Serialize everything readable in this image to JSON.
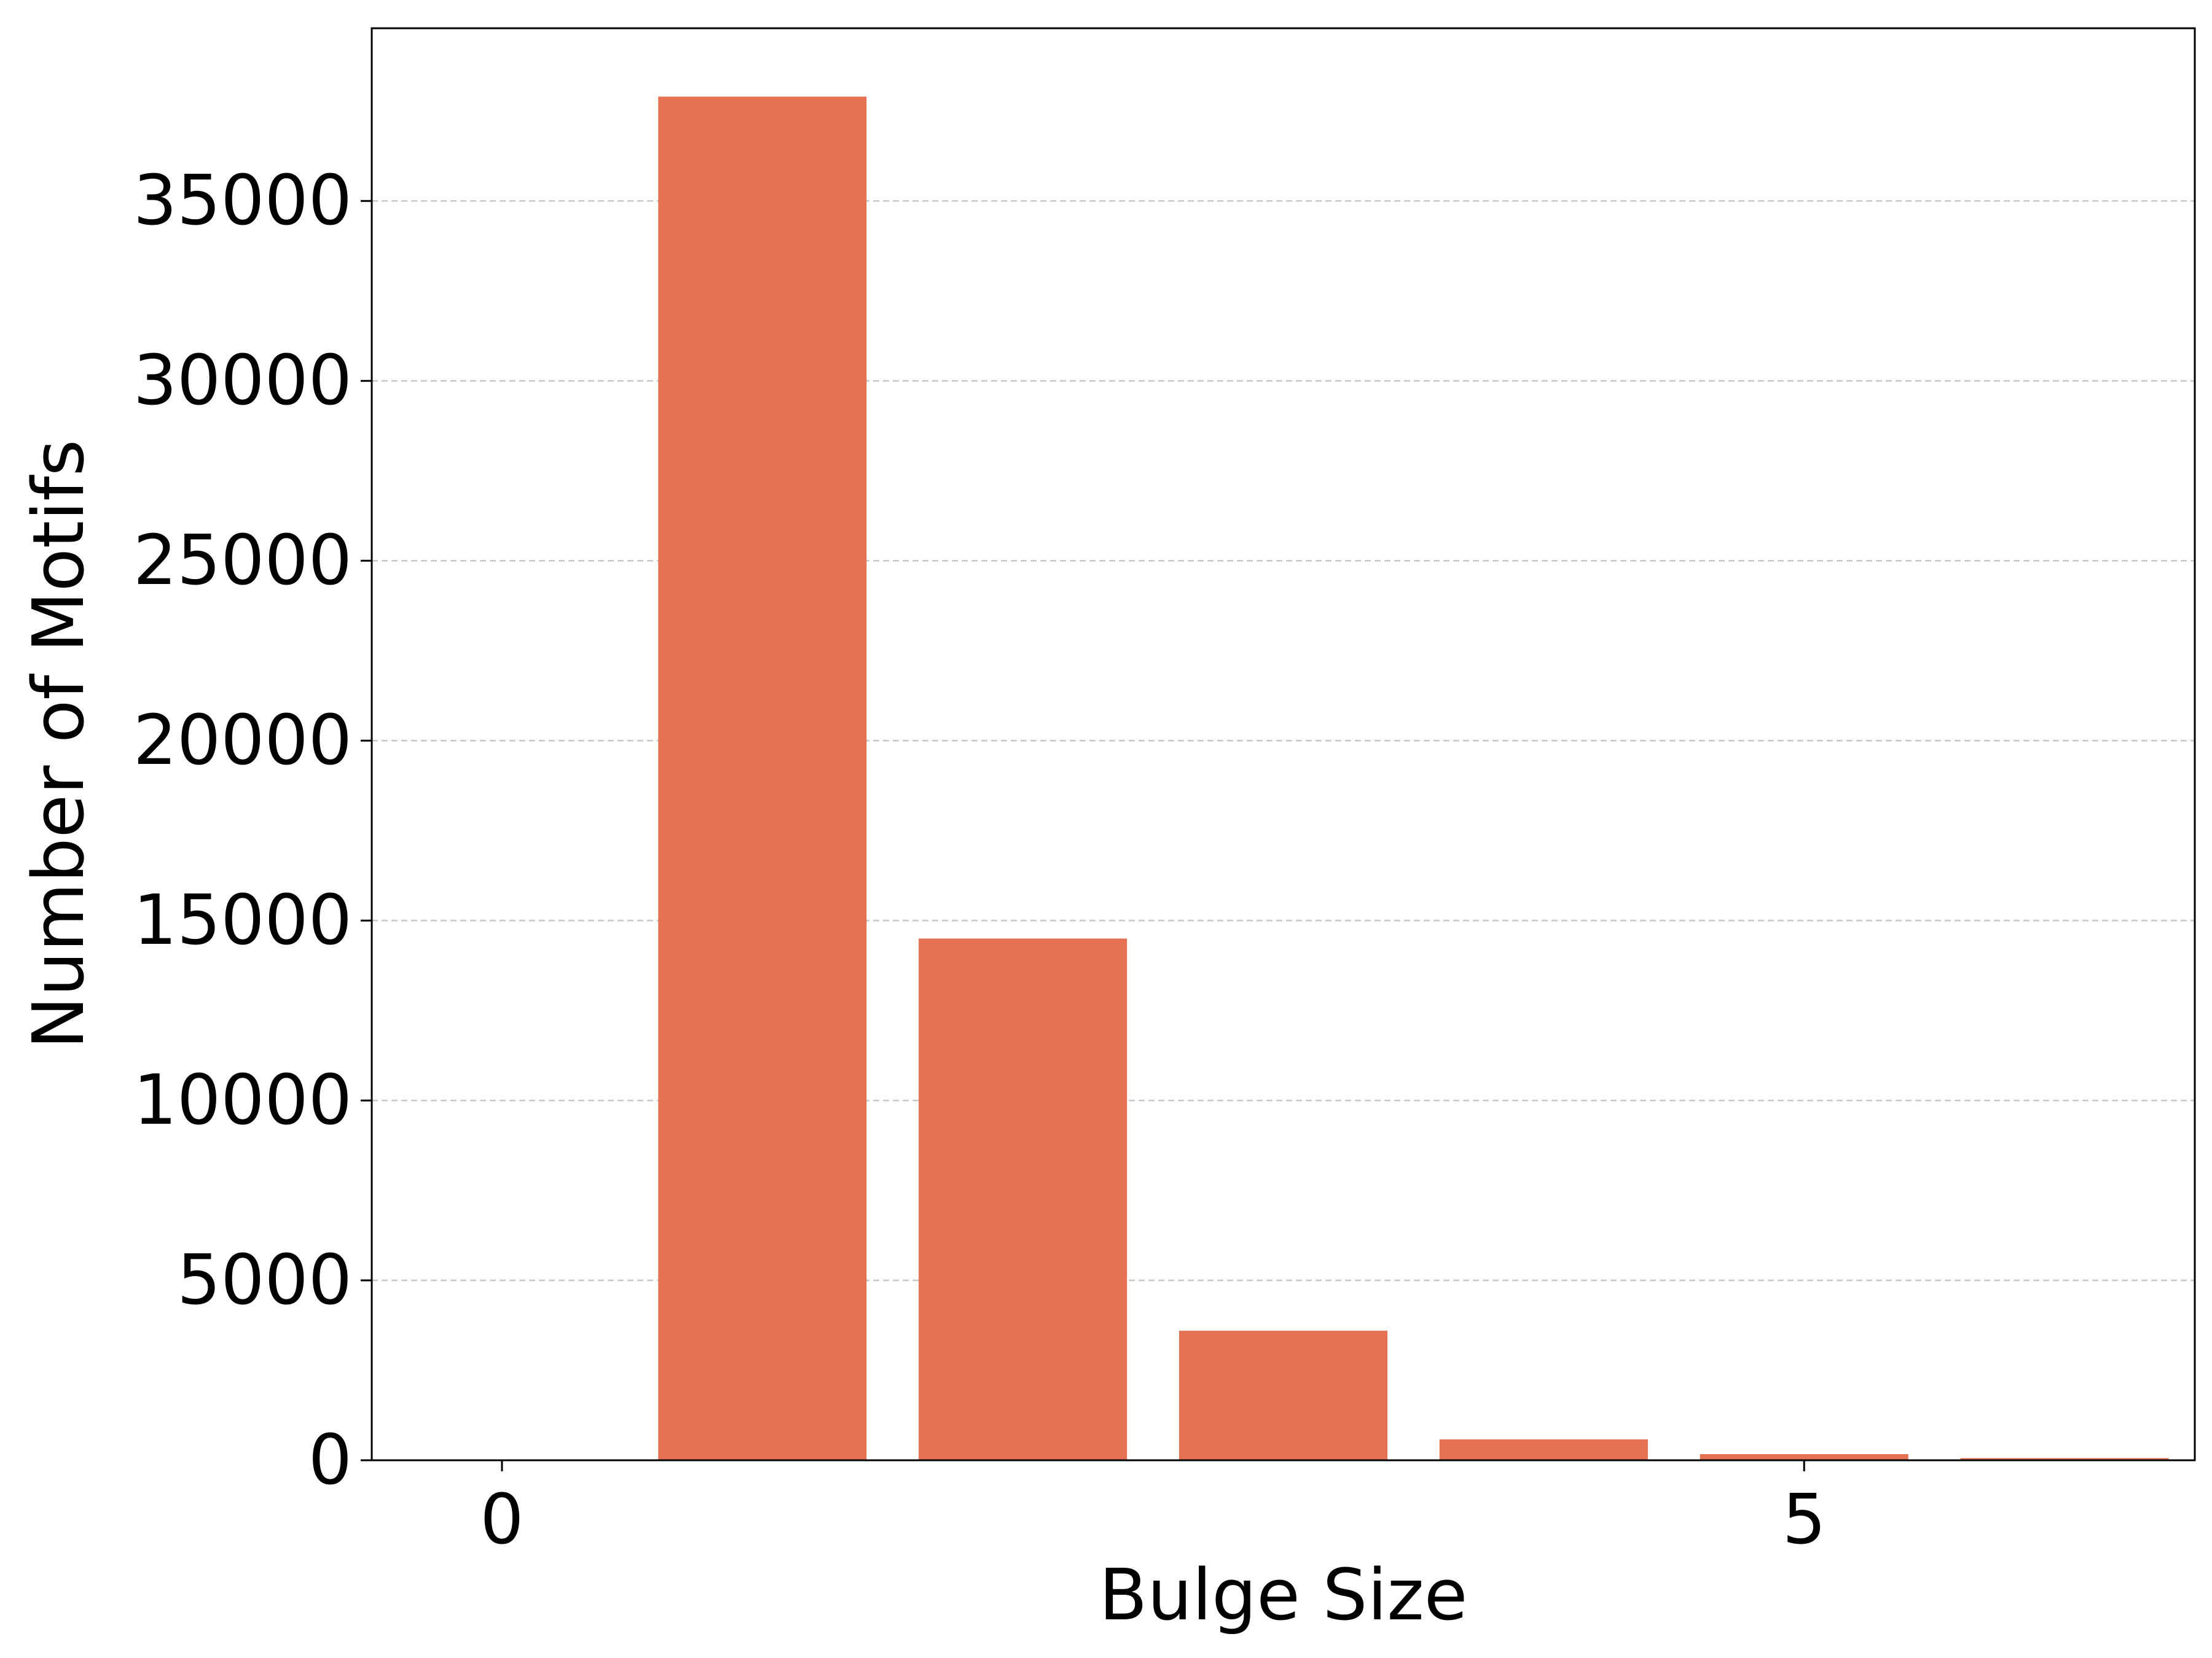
{
  "chart_data": {
    "type": "bar",
    "title": "",
    "xlabel": "Bulge Size",
    "ylabel": "Number of Motifs",
    "x": [
      1,
      2,
      3,
      4,
      5,
      6
    ],
    "values": [
      37900,
      14500,
      3600,
      580,
      170,
      60
    ],
    "xlim": [
      -0.5,
      6.5
    ],
    "ylim": [
      0,
      39800
    ],
    "xticks": [
      0,
      5
    ],
    "yticks": [
      0,
      5000,
      10000,
      15000,
      20000,
      25000,
      30000,
      35000
    ],
    "grid": {
      "axis": "y",
      "style": "dashed",
      "color": "#c8c8c8"
    },
    "bar_color": "#e67054",
    "legend": "none"
  }
}
